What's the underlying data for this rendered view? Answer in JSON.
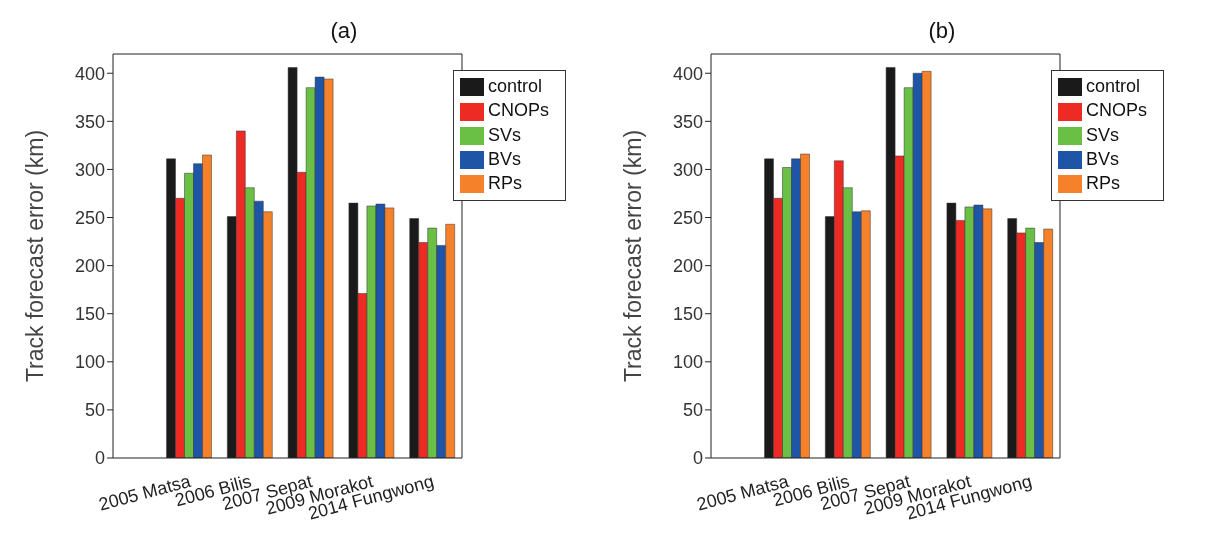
{
  "chart_data": [
    {
      "type": "bar",
      "title": "(a)",
      "ylabel": "Track forecast error (km)",
      "categories": [
        "2005 Matsa",
        "2006 Bilis",
        "2007 Sepat",
        "2009 Morakot",
        "2014 Fungwong"
      ],
      "series": [
        {
          "name": "control",
          "color": "#1a1a1a",
          "values": [
            311,
            251,
            406,
            265,
            249
          ]
        },
        {
          "name": "CNOPs",
          "color": "#ee2a24",
          "values": [
            270,
            340,
            297,
            171,
            224
          ]
        },
        {
          "name": "SVs",
          "color": "#6abf45",
          "values": [
            296,
            281,
            385,
            262,
            239
          ]
        },
        {
          "name": "BVs",
          "color": "#1f55a6",
          "values": [
            306,
            267,
            396,
            264,
            221
          ]
        },
        {
          "name": "RPs",
          "color": "#f5822a",
          "values": [
            315,
            256,
            394,
            260,
            243
          ]
        }
      ],
      "ylim": [
        0,
        420
      ],
      "yticks": [
        0,
        50,
        100,
        150,
        200,
        250,
        300,
        350,
        400
      ],
      "legend": "top right"
    },
    {
      "type": "bar",
      "title": "(b)",
      "ylabel": "Track forecast error (km)",
      "categories": [
        "2005 Matsa",
        "2006 Bilis",
        "2007 Sepat",
        "2009 Morakot",
        "2014 Fungwong"
      ],
      "series": [
        {
          "name": "control",
          "color": "#1a1a1a",
          "values": [
            311,
            251,
            406,
            265,
            249
          ]
        },
        {
          "name": "CNOPs",
          "color": "#ee2a24",
          "values": [
            270,
            309,
            314,
            247,
            234
          ]
        },
        {
          "name": "SVs",
          "color": "#6abf45",
          "values": [
            302,
            281,
            385,
            261,
            239
          ]
        },
        {
          "name": "BVs",
          "color": "#1f55a6",
          "values": [
            311,
            256,
            400,
            263,
            224
          ]
        },
        {
          "name": "RPs",
          "color": "#f5822a",
          "values": [
            316,
            257,
            402,
            259,
            238
          ]
        }
      ],
      "ylim": [
        0,
        420
      ],
      "yticks": [
        0,
        50,
        100,
        150,
        200,
        250,
        300,
        350,
        400
      ],
      "legend": "top right"
    }
  ]
}
